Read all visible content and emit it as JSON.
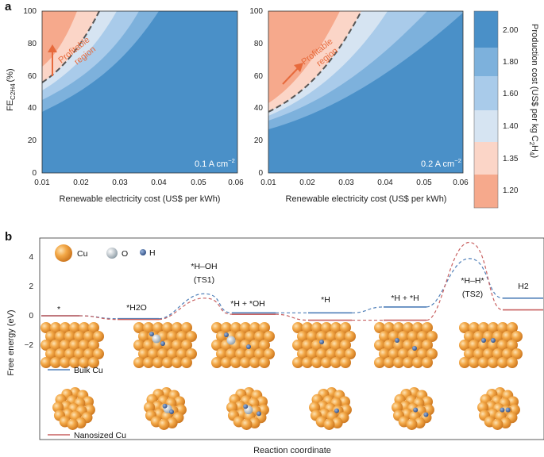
{
  "panel_a": {
    "letter": "a",
    "y_axis_label": "FE",
    "y_axis_label_sub": "C2H4",
    "y_axis_label_unit": "(%)",
    "y_ticks": [
      "0",
      "20",
      "40",
      "60",
      "80",
      "100"
    ],
    "x_ticks": [
      "0.01",
      "0.02",
      "0.03",
      "0.04",
      "0.05",
      "0.06"
    ],
    "x_axis_label": "Renewable electricity cost (US$ per kWh)",
    "left_plot": {
      "current_density": "0.1 A cm",
      "current_density_exp": "−2",
      "profitable_label_1": "Profitable",
      "profitable_label_2": "region"
    },
    "right_plot": {
      "current_density": "0.2 A cm",
      "current_density_exp": "−2",
      "profitable_label_1": "Profitable",
      "profitable_label_2": "region"
    },
    "colorbar": {
      "ticks": [
        "2.00",
        "1.80",
        "1.60",
        "1.40",
        "1.35",
        "1.20"
      ],
      "label": "Production cost (US$ per kg C",
      "label_sub": "2",
      "label_mid": "H",
      "label_sub2": "4",
      "label_end": ")",
      "colors": [
        "#4a90c8",
        "#7db1dc",
        "#a9cbea",
        "#d6e4f2",
        "#fbd5c7",
        "#f6a98c"
      ]
    }
  },
  "panel_b": {
    "letter": "b",
    "y_axis_label": "Free energy (eV)",
    "y_ticks": [
      "4",
      "2",
      "0",
      "−2"
    ],
    "x_axis_label": "Reaction coordinate",
    "legend_atoms": [
      {
        "name": "Cu",
        "color": "#f0a03a"
      },
      {
        "name": "O",
        "color": "#b8c4cc"
      },
      {
        "name": "H",
        "color": "#3f5f9a"
      }
    ],
    "states": [
      "*",
      "*H2O",
      "*H–OH",
      "(TS1)",
      "*H + *OH",
      "*H",
      "*H + *H",
      "*H–H*",
      "(TS2)",
      "H2"
    ],
    "series": [
      {
        "name": "Bulk Cu",
        "color": "#4f7fb8",
        "energies": [
          0,
          -0.2,
          1.5,
          0.2,
          0.2,
          0.6,
          3.9,
          1.2
        ]
      },
      {
        "name": "Nanosized Cu",
        "color": "#c86060",
        "energies": [
          0,
          -0.25,
          1.2,
          0.1,
          -0.3,
          -0.3,
          5.0,
          0.4
        ]
      }
    ],
    "colors": {
      "bulk": "#4f7fb8",
      "nano": "#c86060",
      "cu": "#f0a03a"
    }
  }
}
